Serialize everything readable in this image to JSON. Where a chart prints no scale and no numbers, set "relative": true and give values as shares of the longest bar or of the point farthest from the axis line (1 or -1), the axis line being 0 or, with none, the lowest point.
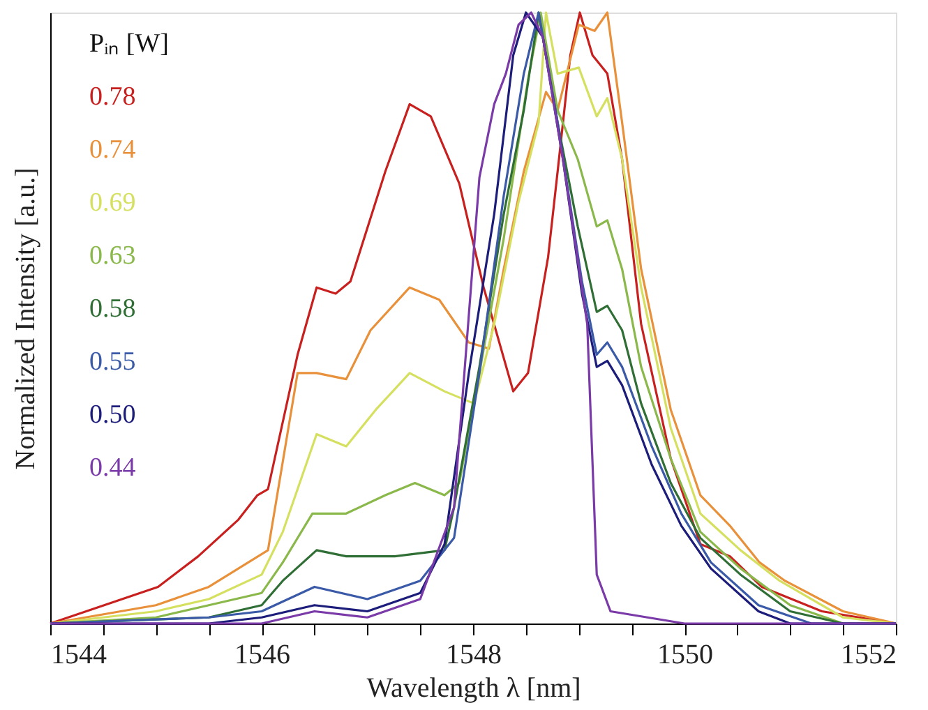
{
  "chart_data": {
    "type": "line",
    "relative": true,
    "xlabel": "Wavelength λ  [nm]",
    "ylabel": "Normalized Intensity  [a.u.]",
    "legend_title": "Pᵢₙ [W]",
    "legend": "top left",
    "grid": false,
    "xlim": [
      1544,
      1552
    ],
    "xticks": [
      1544,
      {
        "value": 1544.5,
        "label": null
      },
      {
        "value": 1545,
        "label": null
      },
      {
        "value": 1545.5,
        "label": null
      },
      1546,
      {
        "value": 1546.5,
        "label": null
      },
      {
        "value": 1547,
        "label": null
      },
      {
        "value": 1547.5,
        "label": null
      },
      1548,
      {
        "value": 1548.5,
        "label": null
      },
      {
        "value": 1549,
        "label": null
      },
      {
        "value": 1549.5,
        "label": null
      },
      1550,
      {
        "value": 1550.5,
        "label": null
      },
      {
        "value": 1551,
        "label": null
      },
      {
        "value": 1551.5,
        "label": null
      },
      1552
    ],
    "series": [
      {
        "name": "0.78",
        "color": "#c8201e",
        "x": [
          1544,
          1545.02,
          1545.4,
          1545.78,
          1545.96,
          1546.06,
          1546.34,
          1546.52,
          1546.7,
          1546.84,
          1547.17,
          1547.4,
          1547.6,
          1547.87,
          1548.1,
          1548.38,
          1548.52,
          1548.71,
          1548.8,
          1548.92,
          1549.01,
          1549.13,
          1549.27,
          1549.41,
          1549.59,
          1549.87,
          1550.15,
          1550.43,
          1550.73,
          1551.3,
          1552
        ],
        "values": [
          0,
          0.06,
          0.11,
          0.17,
          0.21,
          0.22,
          0.44,
          0.55,
          0.54,
          0.56,
          0.74,
          0.85,
          0.83,
          0.72,
          0.55,
          0.38,
          0.41,
          0.6,
          0.74,
          0.93,
          1,
          0.93,
          0.9,
          0.76,
          0.49,
          0.27,
          0.13,
          0.11,
          0.06,
          0.02,
          0
        ]
      },
      {
        "name": "0.74",
        "color": "#e8903a",
        "x": [
          1544,
          1545,
          1545.5,
          1546.06,
          1546.34,
          1546.52,
          1546.8,
          1547.03,
          1547.4,
          1547.68,
          1547.96,
          1548.15,
          1548.29,
          1548.48,
          1548.69,
          1548.8,
          1549,
          1549.15,
          1549.27,
          1549.41,
          1549.59,
          1549.87,
          1550.15,
          1550.43,
          1550.71,
          1550.95,
          1551.5,
          1552
        ],
        "values": [
          0,
          0.03,
          0.06,
          0.12,
          0.41,
          0.41,
          0.4,
          0.48,
          0.55,
          0.53,
          0.46,
          0.45,
          0.58,
          0.74,
          0.87,
          0.84,
          0.98,
          0.97,
          1,
          0.82,
          0.58,
          0.35,
          0.21,
          0.16,
          0.1,
          0.07,
          0.02,
          0
        ]
      },
      {
        "name": "0.69",
        "color": "#d6e060",
        "x": [
          1544,
          1545,
          1545.5,
          1546,
          1546.2,
          1546.52,
          1546.8,
          1547.08,
          1547.4,
          1547.73,
          1548.01,
          1548.2,
          1548.43,
          1548.62,
          1548.69,
          1548.8,
          1549,
          1549.17,
          1549.27,
          1549.41,
          1549.59,
          1549.87,
          1550.15,
          1550.53,
          1550.9,
          1551.5,
          1552
        ],
        "values": [
          0,
          0.02,
          0.04,
          0.08,
          0.15,
          0.31,
          0.29,
          0.35,
          0.41,
          0.38,
          0.36,
          0.49,
          0.69,
          0.82,
          1,
          0.9,
          0.91,
          0.83,
          0.86,
          0.76,
          0.55,
          0.32,
          0.18,
          0.12,
          0.07,
          0.01,
          0
        ]
      },
      {
        "name": "0.63",
        "color": "#8ab84a",
        "x": [
          1544,
          1545,
          1545.5,
          1546,
          1546.2,
          1546.48,
          1546.8,
          1547.17,
          1547.45,
          1547.73,
          1547.87,
          1548.06,
          1548.29,
          1548.52,
          1548.64,
          1548.8,
          1548.99,
          1549.17,
          1549.27,
          1549.41,
          1549.59,
          1549.87,
          1550.15,
          1550.53,
          1551,
          1551.5,
          1552
        ],
        "values": [
          0,
          0.01,
          0.03,
          0.05,
          0.1,
          0.18,
          0.18,
          0.21,
          0.23,
          0.21,
          0.23,
          0.41,
          0.63,
          0.89,
          1,
          0.84,
          0.76,
          0.65,
          0.66,
          0.58,
          0.42,
          0.27,
          0.15,
          0.09,
          0.03,
          0,
          0
        ]
      },
      {
        "name": "0.58",
        "color": "#2f6e34",
        "x": [
          1544,
          1545.5,
          1546,
          1546.2,
          1546.52,
          1546.8,
          1547.26,
          1547.73,
          1547.82,
          1548.06,
          1548.29,
          1548.48,
          1548.62,
          1548.8,
          1548.99,
          1549.17,
          1549.27,
          1549.41,
          1549.59,
          1549.87,
          1550.15,
          1550.53,
          1551,
          1551.5,
          1552
        ],
        "values": [
          0,
          0.01,
          0.03,
          0.07,
          0.12,
          0.11,
          0.11,
          0.12,
          0.19,
          0.42,
          0.67,
          0.84,
          1,
          0.82,
          0.65,
          0.51,
          0.52,
          0.48,
          0.36,
          0.23,
          0.14,
          0.08,
          0.02,
          0,
          0
        ]
      },
      {
        "name": "0.55",
        "color": "#3a5aa8",
        "x": [
          1544,
          1545.5,
          1546,
          1546.5,
          1547,
          1547.5,
          1547.82,
          1548.06,
          1548.29,
          1548.48,
          1548.62,
          1548.8,
          1549.03,
          1549.17,
          1549.27,
          1549.41,
          1549.69,
          1549.97,
          1550.25,
          1550.7,
          1551.2,
          1552
        ],
        "values": [
          0,
          0.01,
          0.02,
          0.06,
          0.04,
          0.07,
          0.14,
          0.41,
          0.7,
          0.9,
          1,
          0.82,
          0.56,
          0.44,
          0.46,
          0.42,
          0.29,
          0.18,
          0.1,
          0.03,
          0,
          0
        ]
      },
      {
        "name": "0.50",
        "color": "#1c1c7a",
        "x": [
          1544,
          1545.5,
          1546,
          1546.5,
          1547,
          1547.5,
          1547.73,
          1547.96,
          1548.2,
          1548.38,
          1548.5,
          1548.66,
          1548.85,
          1549.03,
          1549.17,
          1549.27,
          1549.41,
          1549.69,
          1549.97,
          1550.25,
          1550.7,
          1551,
          1552
        ],
        "values": [
          0,
          0,
          0.01,
          0.03,
          0.02,
          0.05,
          0.13,
          0.41,
          0.67,
          0.93,
          1,
          0.96,
          0.76,
          0.54,
          0.42,
          0.43,
          0.39,
          0.26,
          0.16,
          0.09,
          0.02,
          0,
          0
        ]
      },
      {
        "name": "0.44",
        "color": "#7a3aa8",
        "x": [
          1544,
          1546,
          1546.5,
          1547,
          1547.5,
          1547.82,
          1548.06,
          1548.2,
          1548.31,
          1548.43,
          1548.55,
          1548.66,
          1548.85,
          1549.08,
          1549.17,
          1549.3,
          1550,
          1552
        ],
        "values": [
          0,
          0,
          0.02,
          0.01,
          0.04,
          0.19,
          0.73,
          0.85,
          0.9,
          0.98,
          1,
          0.96,
          0.76,
          0.49,
          0.08,
          0.02,
          0,
          0
        ]
      }
    ]
  }
}
